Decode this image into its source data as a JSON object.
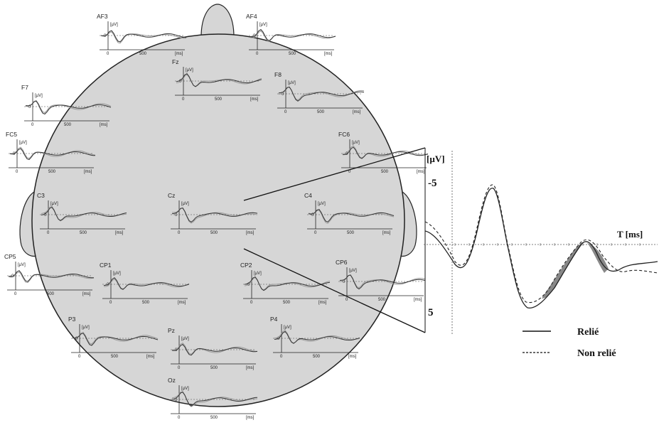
{
  "electrodes": [
    {
      "id": "AF3",
      "label": "AF3"
    },
    {
      "id": "AF4",
      "label": "AF4"
    },
    {
      "id": "Fz",
      "label": "Fz"
    },
    {
      "id": "F8",
      "label": "F8"
    },
    {
      "id": "F7",
      "label": "F7"
    },
    {
      "id": "FC5",
      "label": "FC5"
    },
    {
      "id": "FC6",
      "label": "FC6"
    },
    {
      "id": "C3",
      "label": "C3"
    },
    {
      "id": "Cz",
      "label": "Cz"
    },
    {
      "id": "C4",
      "label": "C4"
    },
    {
      "id": "CP5",
      "label": "CP5"
    },
    {
      "id": "CP1",
      "label": "CP1"
    },
    {
      "id": "CP2",
      "label": "CP2"
    },
    {
      "id": "CP6",
      "label": "CP6"
    },
    {
      "id": "P3",
      "label": "P3"
    },
    {
      "id": "Pz",
      "label": "Pz"
    },
    {
      "id": "P4",
      "label": "P4"
    },
    {
      "id": "Oz",
      "label": "Oz"
    }
  ],
  "mini_plot": {
    "y_unit": "[µV]",
    "x_unit": "[ms]",
    "y_zero": "0",
    "x_zero": "0",
    "x_mid": "500"
  },
  "zoom_plot": {
    "electrode": "Cz",
    "y_unit": "[µV]",
    "y_top": "-5",
    "y_bottom": "5",
    "x_label": "T [ms]"
  },
  "legend": {
    "items": [
      {
        "label": "Relié",
        "style": "solid"
      },
      {
        "label": "Non relié",
        "style": "dashed"
      }
    ]
  },
  "colors": {
    "scalp_fill": "#d6d6d6",
    "trace": "#333333",
    "trace_alt": "#9a9a9a",
    "shading": "#888888"
  }
}
